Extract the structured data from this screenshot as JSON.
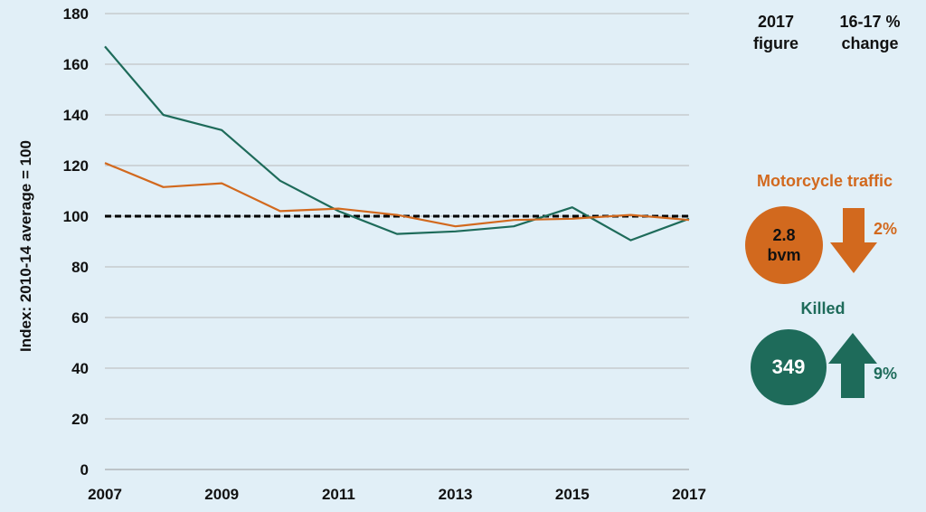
{
  "chart_data": {
    "type": "line",
    "ylabel": "Index: 2010-14 average = 100",
    "x": [
      2007,
      2008,
      2009,
      2010,
      2011,
      2012,
      2013,
      2014,
      2015,
      2016,
      2017
    ],
    "x_tick_labels": [
      "2007",
      "2009",
      "2011",
      "2013",
      "2015",
      "2017"
    ],
    "y_tick_labels": [
      "0",
      "20",
      "40",
      "60",
      "80",
      "100",
      "120",
      "140",
      "160",
      "180"
    ],
    "ylim": [
      0,
      180
    ],
    "xlim": [
      2007,
      2017
    ],
    "grid": "horizontal",
    "series": [
      {
        "name": "Killed",
        "color": "#1e6b5a",
        "values": [
          167,
          140,
          134,
          114,
          102,
          93,
          94,
          96,
          103.5,
          90.5,
          99
        ]
      },
      {
        "name": "Motorcycle traffic",
        "color": "#d2691e",
        "values": [
          121,
          111.5,
          113,
          102,
          103,
          100.5,
          96,
          98.5,
          99,
          100.5,
          98.5
        ]
      }
    ],
    "reference_line": {
      "value": 100,
      "style": "dashed",
      "color": "#000000"
    }
  },
  "panel": {
    "col1_header_line1": "2017",
    "col1_header_line2": "figure",
    "col2_header_line1": "16-17 %",
    "col2_header_line2": "change",
    "traffic": {
      "title": "Motorcycle traffic",
      "value_line1": "2.8",
      "value_line2": "bvm",
      "change": "2%",
      "direction": "down",
      "color": "#d2691e"
    },
    "killed": {
      "title": "Killed",
      "value": "349",
      "change": "9%",
      "direction": "up",
      "color": "#1e6b5a"
    }
  }
}
